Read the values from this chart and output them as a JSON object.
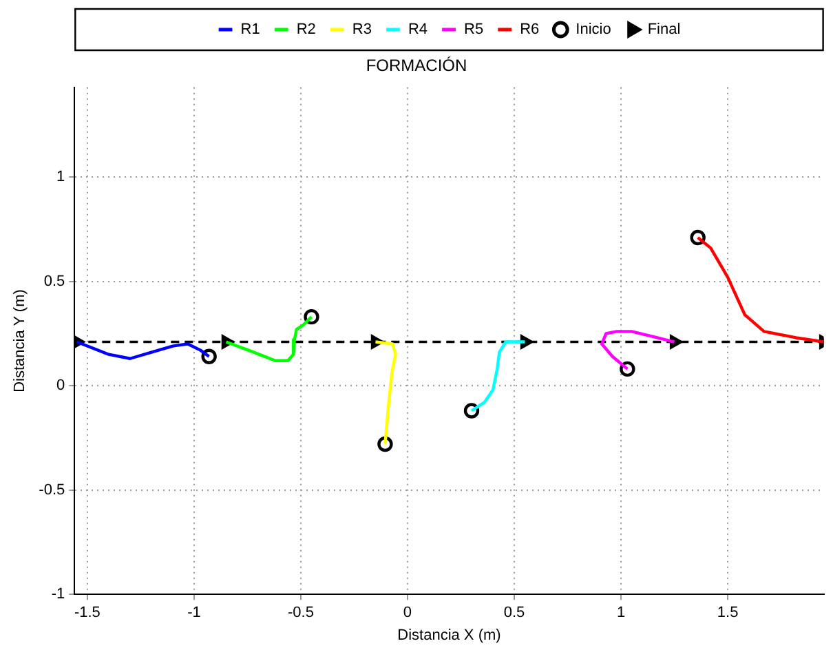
{
  "chart_data": {
    "type": "line",
    "title": "FORMACIÓN",
    "xlabel": "Distancia X (m)",
    "ylabel": "Distancia Y (m)",
    "xlim": [
      -1.56,
      1.95
    ],
    "ylim": [
      -1,
      1.43
    ],
    "xticks": [
      -1.5,
      -1,
      -0.5,
      0,
      0.5,
      1,
      1.5
    ],
    "yticks": [
      -1,
      -0.5,
      0,
      0.5,
      1
    ],
    "grid": true,
    "legend": "top",
    "marker": "none",
    "line_style": "solid",
    "ref_lines": [
      {
        "axis": "y",
        "value": 0.21,
        "color": "#000000",
        "line_style": "dashed"
      }
    ],
    "series": [
      {
        "name": "R1",
        "color": "#0000ff",
        "x": [
          -0.93,
          -0.97,
          -1.03,
          -1.1,
          -1.2,
          -1.3,
          -1.4,
          -1.5,
          -1.55
        ],
        "values": [
          0.14,
          0.17,
          0.2,
          0.19,
          0.16,
          0.13,
          0.15,
          0.19,
          0.21
        ]
      },
      {
        "name": "R2",
        "color": "#00ff00",
        "x": [
          -0.45,
          -0.49,
          -0.52,
          -0.53,
          -0.535,
          -0.56,
          -0.62,
          -0.72,
          -0.85
        ],
        "values": [
          0.33,
          0.29,
          0.27,
          0.22,
          0.15,
          0.12,
          0.12,
          0.16,
          0.21
        ]
      },
      {
        "name": "R3",
        "color": "#ffff00",
        "x": [
          -0.105,
          -0.09,
          -0.073,
          -0.056,
          -0.07,
          -0.15
        ],
        "values": [
          -0.28,
          -0.1,
          0.065,
          0.15,
          0.2,
          0.21
        ]
      },
      {
        "name": "R4",
        "color": "#00ffff",
        "x": [
          0.3,
          0.36,
          0.4,
          0.42,
          0.43,
          0.46,
          0.55
        ],
        "values": [
          -0.12,
          -0.08,
          -0.02,
          0.08,
          0.16,
          0.21,
          0.21
        ]
      },
      {
        "name": "R5",
        "color": "#ff00ff",
        "x": [
          1.03,
          0.96,
          0.91,
          0.93,
          0.98,
          1.05,
          1.17,
          1.25
        ],
        "values": [
          0.08,
          0.14,
          0.2,
          0.25,
          0.26,
          0.26,
          0.23,
          0.21
        ]
      },
      {
        "name": "R6",
        "color": "#ff0000",
        "x": [
          1.36,
          1.42,
          1.5,
          1.58,
          1.67,
          1.82,
          1.95
        ],
        "values": [
          0.71,
          0.66,
          0.52,
          0.34,
          0.26,
          0.23,
          0.21
        ]
      },
      {
        "name": "Inicio",
        "type": "scatter",
        "marker": "circle",
        "color": "#000000",
        "x": [
          -0.93,
          -0.45,
          -0.105,
          0.3,
          1.03,
          1.36
        ],
        "values": [
          0.14,
          0.33,
          -0.28,
          -0.12,
          0.08,
          0.71
        ]
      },
      {
        "name": "Final",
        "type": "scatter",
        "marker": "triangle",
        "color": "#000000",
        "x": [
          -1.55,
          -0.85,
          -0.15,
          0.55,
          1.25,
          1.95
        ],
        "values": [
          0.21,
          0.21,
          0.21,
          0.21,
          0.21,
          0.21
        ]
      }
    ]
  }
}
